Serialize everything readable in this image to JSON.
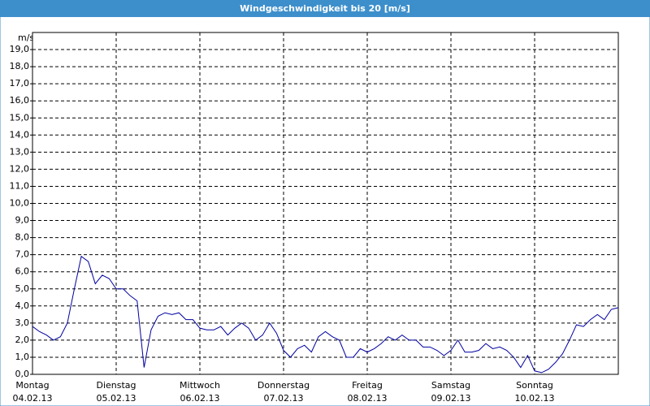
{
  "chart_data": {
    "type": "line",
    "title": "Windgeschwindigkeit bis 20 [m/s]",
    "y_label": "m/s",
    "x": [
      0,
      2,
      4,
      6,
      8,
      10,
      12,
      14,
      16,
      18,
      20,
      22,
      24,
      26,
      28,
      30,
      32,
      34,
      36,
      38,
      40,
      42,
      44,
      46,
      48,
      50,
      52,
      54,
      56,
      58,
      60,
      62,
      64,
      66,
      68,
      70,
      72,
      74,
      76,
      78,
      80,
      82,
      84,
      86,
      88,
      90,
      92,
      94,
      96,
      98,
      100,
      102,
      104,
      106,
      108,
      110,
      112,
      114,
      116,
      118,
      120,
      122,
      124,
      126,
      128,
      130,
      132,
      134,
      136,
      138,
      140,
      142,
      144,
      146,
      148,
      150,
      152,
      154,
      156,
      158,
      160,
      162,
      164,
      166,
      168
    ],
    "series": [
      {
        "name": "Windgeschwindigkeit",
        "color": "#0000a0",
        "values": [
          2.8,
          2.5,
          2.3,
          2.0,
          2.2,
          3.0,
          5.0,
          6.9,
          6.6,
          5.3,
          5.8,
          5.6,
          5.0,
          5.0,
          4.6,
          4.3,
          0.4,
          2.6,
          3.4,
          3.6,
          3.5,
          3.6,
          3.2,
          3.2,
          2.7,
          2.6,
          2.6,
          2.8,
          2.3,
          2.7,
          3.0,
          2.7,
          2.0,
          2.3,
          3.0,
          2.4,
          1.4,
          1.0,
          1.5,
          1.7,
          1.3,
          2.2,
          2.5,
          2.2,
          2.0,
          1.0,
          1.0,
          1.5,
          1.3,
          1.5,
          1.8,
          2.2,
          2.0,
          2.3,
          2.0,
          2.0,
          1.6,
          1.6,
          1.4,
          1.1,
          1.4,
          2.0,
          1.3,
          1.3,
          1.4,
          1.8,
          1.5,
          1.6,
          1.4,
          1.0,
          0.4,
          1.1,
          0.2,
          0.1,
          0.3,
          0.7,
          1.2,
          2.0,
          2.9,
          2.8,
          3.2,
          3.5,
          3.2,
          3.8,
          3.9
        ]
      }
    ],
    "xlim": [
      0,
      168
    ],
    "xticks": [
      {
        "value": 0,
        "label": "Montag",
        "date": "04.02.13"
      },
      {
        "value": 24,
        "label": "Dienstag",
        "date": "05.02.13"
      },
      {
        "value": 48,
        "label": "Mittwoch",
        "date": "06.02.13"
      },
      {
        "value": 72,
        "label": "Donnerstag",
        "date": "07.02.13"
      },
      {
        "value": 96,
        "label": "Freitag",
        "date": "08.02.13"
      },
      {
        "value": 120,
        "label": "Samstag",
        "date": "09.02.13"
      },
      {
        "value": 144,
        "label": "Sonntag",
        "date": "10.02.13"
      }
    ],
    "ylim": [
      0,
      20
    ],
    "yticks": [
      {
        "value": 0,
        "label": "0,0"
      },
      {
        "value": 1,
        "label": "1,0"
      },
      {
        "value": 2,
        "label": "2,0"
      },
      {
        "value": 3,
        "label": "3,0"
      },
      {
        "value": 4,
        "label": "4,0"
      },
      {
        "value": 5,
        "label": "5,0"
      },
      {
        "value": 6,
        "label": "6,0"
      },
      {
        "value": 7,
        "label": "7,0"
      },
      {
        "value": 8,
        "label": "8,0"
      },
      {
        "value": 9,
        "label": "9,0"
      },
      {
        "value": 10,
        "label": "10,0"
      },
      {
        "value": 11,
        "label": "11,0"
      },
      {
        "value": 12,
        "label": "12,0"
      },
      {
        "value": 13,
        "label": "13,0"
      },
      {
        "value": 14,
        "label": "14,0"
      },
      {
        "value": 15,
        "label": "15,0"
      },
      {
        "value": 16,
        "label": "16,0"
      },
      {
        "value": 17,
        "label": "17,0"
      },
      {
        "value": 18,
        "label": "18,0"
      },
      {
        "value": 19,
        "label": "19,0"
      }
    ],
    "grid": true
  }
}
